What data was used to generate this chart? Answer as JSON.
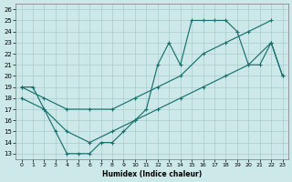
{
  "xlabel": "Humidex (Indice chaleur)",
  "bg_color": "#cce8e8",
  "grid_color": "#a8cccc",
  "line_color": "#1a7070",
  "xlim": [
    -0.5,
    23.5
  ],
  "ylim": [
    12.5,
    26.5
  ],
  "xticks": [
    0,
    1,
    2,
    3,
    4,
    5,
    6,
    7,
    8,
    9,
    10,
    11,
    12,
    13,
    14,
    15,
    16,
    17,
    18,
    19,
    20,
    21,
    22,
    23
  ],
  "yticks": [
    13,
    14,
    15,
    16,
    17,
    18,
    19,
    20,
    21,
    22,
    23,
    24,
    25,
    26
  ],
  "line1_x": [
    0,
    1,
    2,
    3,
    4,
    5,
    6,
    7,
    8,
    9,
    10,
    11,
    12,
    13,
    14,
    15,
    16,
    17,
    18,
    19,
    20,
    21,
    22,
    23
  ],
  "line1_y": [
    19,
    19,
    17,
    15,
    13,
    13,
    13,
    14,
    14,
    15,
    16,
    17,
    21,
    23,
    21,
    25,
    25,
    25,
    25,
    24,
    21,
    21,
    23,
    20
  ],
  "line2_x": [
    0,
    2,
    4,
    6,
    8,
    10,
    12,
    14,
    16,
    18,
    20,
    22
  ],
  "line2_y": [
    19,
    18,
    17,
    17,
    17,
    18,
    19,
    20,
    22,
    23,
    24,
    25
  ],
  "line3_x": [
    0,
    2,
    4,
    6,
    8,
    10,
    12,
    14,
    16,
    18,
    20,
    22,
    23
  ],
  "line3_y": [
    18,
    17,
    15,
    14,
    15,
    16,
    17,
    18,
    19,
    20,
    21,
    23,
    20
  ]
}
